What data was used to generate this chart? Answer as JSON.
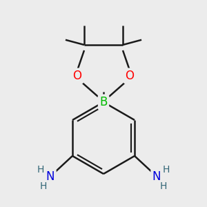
{
  "background_color": "#ececec",
  "line_color": "#1a1a1a",
  "bond_width": 1.8,
  "atom_colors": {
    "B": "#00bb00",
    "O": "#ff0000",
    "N": "#0000dd",
    "H": "#336677",
    "C": "#1a1a1a"
  },
  "font_size_atom": 11,
  "font_size_h": 9
}
